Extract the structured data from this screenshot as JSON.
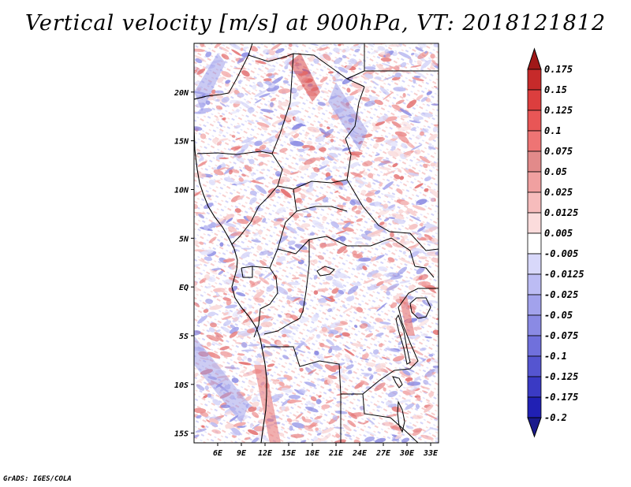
{
  "title": "Vertical velocity [m/s] at 900hPa, VT: 2018121812",
  "credit": "GrADS: IGES/COLA",
  "map": {
    "lon_range": [
      3,
      34
    ],
    "lat_range": [
      -16,
      25
    ],
    "lat_labels": [
      {
        "value": 20,
        "text": "20N"
      },
      {
        "value": 15,
        "text": "15N"
      },
      {
        "value": 10,
        "text": "10N"
      },
      {
        "value": 5,
        "text": "5N"
      },
      {
        "value": 0,
        "text": "EQ"
      },
      {
        "value": -5,
        "text": "5S"
      },
      {
        "value": -10,
        "text": "10S"
      },
      {
        "value": -15,
        "text": "15S"
      }
    ],
    "lon_labels": [
      {
        "value": 6,
        "text": "6E"
      },
      {
        "value": 9,
        "text": "9E"
      },
      {
        "value": 12,
        "text": "12E"
      },
      {
        "value": 15,
        "text": "15E"
      },
      {
        "value": 18,
        "text": "18E"
      },
      {
        "value": 21,
        "text": "21E"
      },
      {
        "value": 24,
        "text": "24E"
      },
      {
        "value": 27,
        "text": "27E"
      },
      {
        "value": 30,
        "text": "30E"
      },
      {
        "value": 33,
        "text": "33E"
      }
    ]
  },
  "colorbar": {
    "levels": [
      "0.175",
      "0.15",
      "0.125",
      "0.1",
      "0.075",
      "0.05",
      "0.025",
      "0.0125",
      "0.005",
      "-0.005",
      "-0.0125",
      "-0.025",
      "-0.05",
      "-0.075",
      "-0.1",
      "-0.125",
      "-0.175",
      "-0.2"
    ],
    "colors": [
      "#b3141c",
      "#c62a2a",
      "#dc3e3e",
      "#e85656",
      "#ee7474",
      "#e28a8a",
      "#f0a0a0",
      "#f6bcbc",
      "#fbdcdc",
      "#ffffff",
      "#d8d8fa",
      "#bcbcf4",
      "#a2a2ec",
      "#8a8ae4",
      "#7070dc",
      "#5555d0",
      "#3a3ac4",
      "#2020b4",
      "#10109a"
    ],
    "top_arrow_color": "#a01818",
    "bottom_arrow_color": "#1a1a8c"
  }
}
